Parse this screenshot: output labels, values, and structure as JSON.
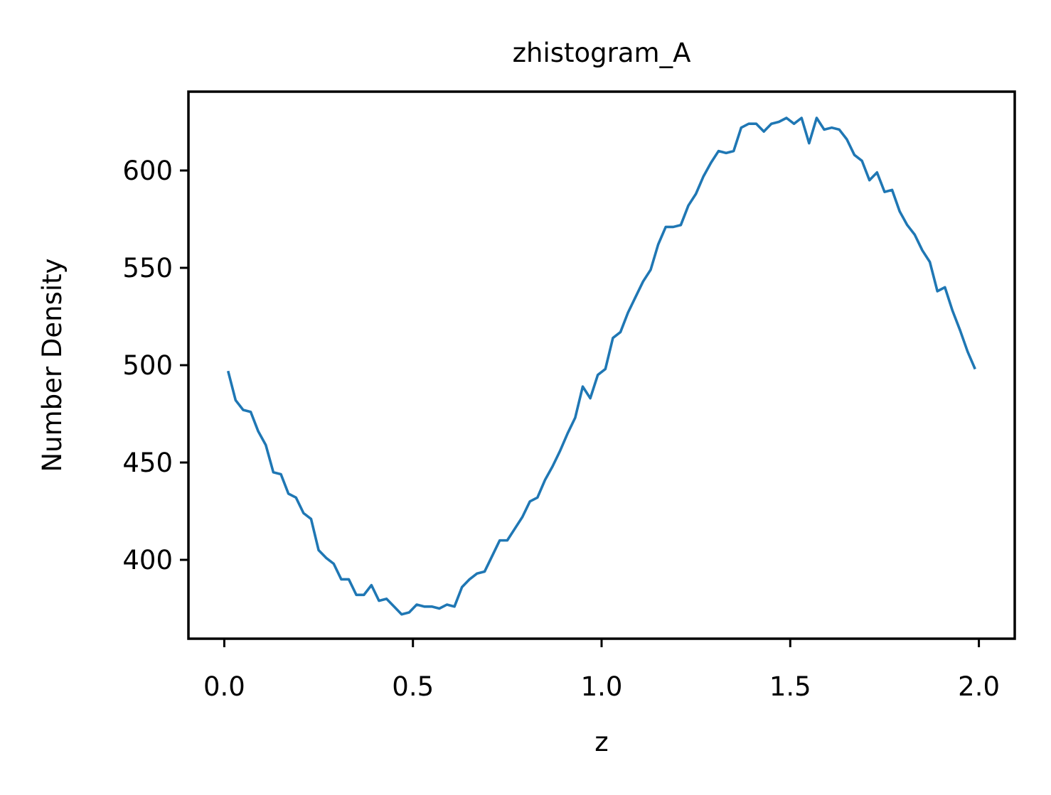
{
  "chart_data": {
    "type": "line",
    "title": "zhistogram_A",
    "xlabel": "z",
    "ylabel": "Number Density",
    "xlim": [
      -0.095,
      2.095
    ],
    "ylim": [
      359.5,
      640.5
    ],
    "xticks": [
      0.0,
      0.5,
      1.0,
      1.5,
      2.0
    ],
    "xtick_labels": [
      "0.0",
      "0.5",
      "1.0",
      "1.5",
      "2.0"
    ],
    "yticks": [
      400,
      450,
      500,
      550,
      600
    ],
    "ytick_labels": [
      "400",
      "450",
      "500",
      "550",
      "600"
    ],
    "grid": false,
    "legend": false,
    "line_color": "#1f77b4",
    "series": [
      {
        "x": [
          0.01,
          0.03,
          0.05,
          0.07,
          0.09,
          0.11,
          0.13,
          0.15,
          0.17,
          0.19,
          0.21,
          0.23,
          0.25,
          0.27,
          0.29,
          0.31,
          0.33,
          0.35,
          0.37,
          0.39,
          0.41,
          0.43,
          0.45,
          0.47,
          0.49,
          0.51,
          0.53,
          0.55,
          0.57,
          0.59,
          0.61,
          0.63,
          0.65,
          0.67,
          0.69,
          0.71,
          0.73,
          0.75,
          0.77,
          0.79,
          0.81,
          0.83,
          0.85,
          0.87,
          0.89,
          0.91,
          0.93,
          0.95,
          0.97,
          0.99,
          1.01,
          1.03,
          1.05,
          1.07,
          1.09,
          1.11,
          1.13,
          1.15,
          1.17,
          1.19,
          1.21,
          1.23,
          1.25,
          1.27,
          1.29,
          1.31,
          1.33,
          1.35,
          1.37,
          1.39,
          1.41,
          1.43,
          1.45,
          1.47,
          1.49,
          1.51,
          1.53,
          1.55,
          1.57,
          1.59,
          1.61,
          1.63,
          1.65,
          1.67,
          1.69,
          1.71,
          1.73,
          1.75,
          1.77,
          1.79,
          1.81,
          1.83,
          1.85,
          1.87,
          1.89,
          1.91,
          1.93,
          1.95,
          1.97,
          1.99
        ],
        "values": [
          497,
          482,
          477,
          476,
          466,
          459,
          445,
          444,
          434,
          432,
          424,
          421,
          405,
          401,
          398,
          390,
          390,
          382,
          382,
          387,
          379,
          380,
          376,
          372,
          373,
          377,
          376,
          376,
          375,
          377,
          376,
          386,
          390,
          393,
          394,
          402,
          410,
          410,
          416,
          422,
          430,
          432,
          441,
          448,
          456,
          465,
          473,
          489,
          483,
          495,
          498,
          514,
          517,
          527,
          535,
          543,
          549,
          562,
          571,
          571,
          572,
          582,
          588,
          597,
          604,
          610,
          609,
          610,
          622,
          624,
          624,
          620,
          624,
          625,
          627,
          624,
          627,
          614,
          627,
          621,
          622,
          621,
          616,
          608,
          605,
          595,
          599,
          589,
          590,
          579,
          572,
          567,
          559,
          553,
          538,
          540,
          528,
          518,
          507,
          498
        ]
      }
    ]
  }
}
